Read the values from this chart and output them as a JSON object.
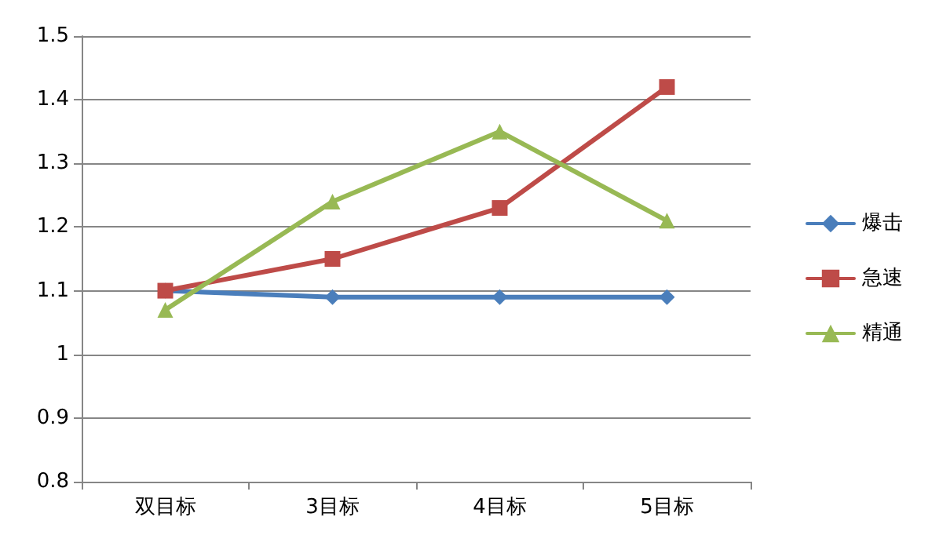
{
  "chart_data": {
    "type": "line",
    "categories": [
      "双目标",
      "3目标",
      "4目标",
      "5目标"
    ],
    "series": [
      {
        "name": "爆击",
        "color": "#4a7ebb",
        "marker": "diamond",
        "values": [
          1.1,
          1.09,
          1.09,
          1.09
        ]
      },
      {
        "name": "急速",
        "color": "#be4b48",
        "marker": "square",
        "values": [
          1.1,
          1.15,
          1.23,
          1.42
        ]
      },
      {
        "name": "精通",
        "color": "#98b954",
        "marker": "triangle",
        "values": [
          1.07,
          1.24,
          1.35,
          1.21
        ]
      }
    ],
    "ylim": [
      0.8,
      1.5
    ],
    "yticks": [
      0.8,
      0.9,
      1,
      1.1,
      1.2,
      1.3,
      1.4,
      1.5
    ],
    "grid": "y",
    "legend": "right",
    "line_style": "solid"
  }
}
